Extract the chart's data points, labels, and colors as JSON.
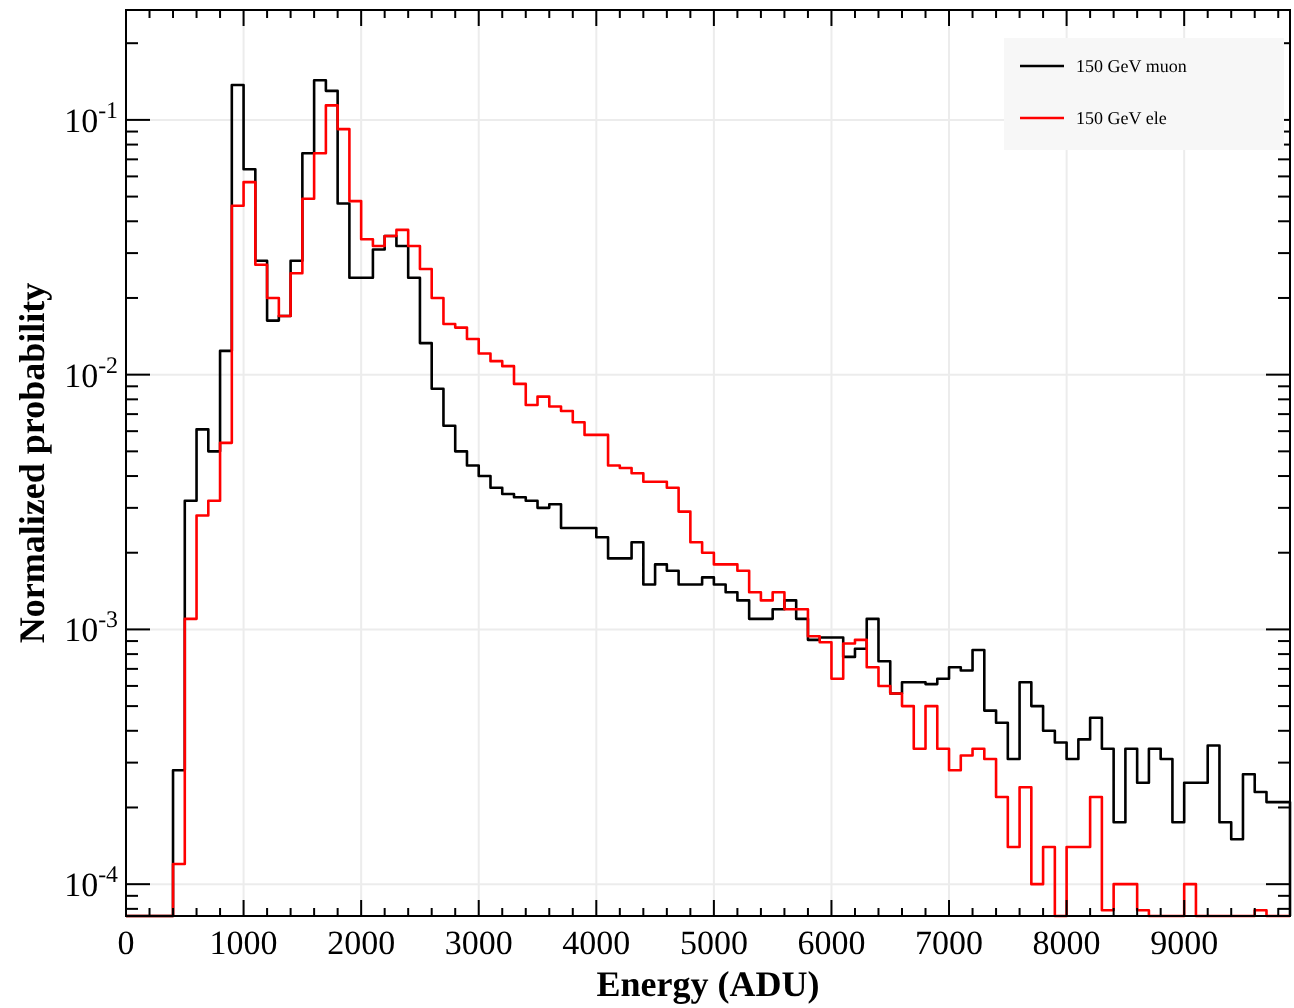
{
  "chart_data": {
    "type": "histogram",
    "xlabel": "Energy (ADU)",
    "ylabel": "Normalized probability",
    "log": "y",
    "grid": true,
    "legend": "top right",
    "bins": [
      0,
      100,
      200,
      300,
      400,
      500,
      600,
      700,
      800,
      900,
      1000,
      1100,
      1200,
      1300,
      1400,
      1500,
      1600,
      1700,
      1800,
      1900,
      2000,
      2100,
      2200,
      2300,
      2400,
      2500,
      2600,
      2700,
      2800,
      2900,
      3000,
      3100,
      3200,
      3300,
      3400,
      3500,
      3600,
      3700,
      3800,
      3900,
      4000,
      4100,
      4200,
      4300,
      4400,
      4500,
      4600,
      4700,
      4800,
      4900,
      5000,
      5100,
      5200,
      5300,
      5400,
      5500,
      5600,
      5700,
      5800,
      5900,
      6000,
      6100,
      6200,
      6300,
      6400,
      6500,
      6600,
      6700,
      6800,
      6900,
      7000,
      7100,
      7200,
      7300,
      7400,
      7500,
      7600,
      7700,
      7800,
      7900,
      8000,
      8100,
      8200,
      8300,
      8400,
      8500,
      8600,
      8700,
      8800,
      8900,
      9000,
      9100,
      9200,
      9300,
      9400,
      9500,
      9600,
      9700,
      9800,
      9900
    ],
    "xlim": [
      0,
      9900
    ],
    "ylim": [
      7.5e-05,
      0.27
    ],
    "xticks": [
      0,
      {
        "value": 200,
        "label": null
      },
      {
        "value": 400,
        "label": null
      },
      {
        "value": 600,
        "label": null
      },
      {
        "value": 800,
        "label": null
      },
      1000,
      {
        "value": 1200,
        "label": null
      },
      {
        "value": 1400,
        "label": null
      },
      {
        "value": 1600,
        "label": null
      },
      {
        "value": 1800,
        "label": null
      },
      2000,
      {
        "value": 2200,
        "label": null
      },
      {
        "value": 2400,
        "label": null
      },
      {
        "value": 2600,
        "label": null
      },
      {
        "value": 2800,
        "label": null
      },
      3000,
      {
        "value": 3200,
        "label": null
      },
      {
        "value": 3400,
        "label": null
      },
      {
        "value": 3600,
        "label": null
      },
      {
        "value": 3800,
        "label": null
      },
      4000,
      {
        "value": 4200,
        "label": null
      },
      {
        "value": 4400,
        "label": null
      },
      {
        "value": 4600,
        "label": null
      },
      {
        "value": 4800,
        "label": null
      },
      5000,
      {
        "value": 5200,
        "label": null
      },
      {
        "value": 5400,
        "label": null
      },
      {
        "value": 5600,
        "label": null
      },
      {
        "value": 5800,
        "label": null
      },
      6000,
      {
        "value": 6200,
        "label": null
      },
      {
        "value": 6400,
        "label": null
      },
      {
        "value": 6600,
        "label": null
      },
      {
        "value": 6800,
        "label": null
      },
      7000,
      {
        "value": 7200,
        "label": null
      },
      {
        "value": 7400,
        "label": null
      },
      {
        "value": 7600,
        "label": null
      },
      {
        "value": 7800,
        "label": null
      },
      8000,
      {
        "value": 8200,
        "label": null
      },
      {
        "value": 8400,
        "label": null
      },
      {
        "value": 8600,
        "label": null
      },
      {
        "value": 8800,
        "label": null
      },
      9000,
      {
        "value": 9200,
        "label": null
      },
      {
        "value": 9400,
        "label": null
      },
      {
        "value": 9600,
        "label": null
      },
      {
        "value": 9800,
        "label": null
      }
    ],
    "yticks": [
      {
        "value": 8e-05,
        "label": null
      },
      {
        "value": 9e-05,
        "label": null
      },
      {
        "value": 0.0001,
        "label": "10$^{-4}$"
      },
      {
        "value": 0.0002,
        "label": null
      },
      {
        "value": 0.0003,
        "label": null
      },
      {
        "value": 0.0004,
        "label": null
      },
      {
        "value": 0.0005,
        "label": null
      },
      {
        "value": 0.0006,
        "label": null
      },
      {
        "value": 0.0007,
        "label": null
      },
      {
        "value": 0.0008,
        "label": null
      },
      {
        "value": 0.0009,
        "label": null
      },
      {
        "value": 0.001,
        "label": "10$^{-3}$"
      },
      {
        "value": 0.002,
        "label": null
      },
      {
        "value": 0.003,
        "label": null
      },
      {
        "value": 0.004,
        "label": null
      },
      {
        "value": 0.005,
        "label": null
      },
      {
        "value": 0.006,
        "label": null
      },
      {
        "value": 0.007,
        "label": null
      },
      {
        "value": 0.008,
        "label": null
      },
      {
        "value": 0.009,
        "label": null
      },
      {
        "value": 0.01,
        "label": "10$^{-2}$"
      },
      {
        "value": 0.02,
        "label": null
      },
      {
        "value": 0.03,
        "label": null
      },
      {
        "value": 0.04,
        "label": null
      },
      {
        "value": 0.05,
        "label": null
      },
      {
        "value": 0.06,
        "label": null
      },
      {
        "value": 0.07,
        "label": null
      },
      {
        "value": 0.08,
        "label": null
      },
      {
        "value": 0.09,
        "label": null
      },
      {
        "value": 0.1,
        "label": "10$^{-1}$"
      },
      {
        "value": 0.2,
        "label": null
      }
    ],
    "series": [
      {
        "name": "150 GeV muon",
        "color": "#000000",
        "values": [
          null,
          null,
          null,
          null,
          0.00028,
          0.0032,
          0.0061,
          0.005,
          0.0124,
          0.137,
          0.064,
          0.028,
          0.0163,
          0.017,
          0.028,
          0.074,
          0.143,
          0.13,
          0.047,
          0.024,
          0.024,
          0.031,
          0.035,
          0.032,
          0.024,
          0.0133,
          0.0088,
          0.0063,
          0.005,
          0.0044,
          0.004,
          0.0036,
          0.0034,
          0.0033,
          0.0032,
          0.003,
          0.0031,
          0.0025,
          0.0025,
          0.0025,
          0.0023,
          0.0019,
          0.0019,
          0.0022,
          0.0015,
          0.0018,
          0.0017,
          0.0015,
          0.0015,
          0.0016,
          0.0015,
          0.0014,
          0.0013,
          0.0011,
          0.0011,
          0.0012,
          0.0013,
          0.0011,
          0.00091,
          0.00093,
          0.00093,
          0.00078,
          0.00084,
          0.0011,
          0.00075,
          0.00056,
          0.00062,
          0.00062,
          0.00061,
          0.00064,
          0.00071,
          0.00069,
          0.00083,
          0.00048,
          0.00043,
          0.00031,
          0.00062,
          0.0005,
          0.0004,
          0.00036,
          0.00031,
          0.00037,
          0.00045,
          0.00034,
          0.000175,
          0.00034,
          0.00025,
          0.00034,
          0.00031,
          0.000175,
          0.00025,
          0.00025,
          0.00035,
          0.000175,
          0.00015,
          0.00027,
          0.00023,
          0.00021,
          0.00021
        ]
      },
      {
        "name": "150 GeV ele",
        "color": "#ff0000",
        "values": [
          null,
          null,
          null,
          null,
          0.00012,
          0.0011,
          0.0028,
          0.0032,
          0.0054,
          0.046,
          0.057,
          0.027,
          0.02,
          0.017,
          0.025,
          0.049,
          0.074,
          0.114,
          0.092,
          0.048,
          0.034,
          0.032,
          0.035,
          0.037,
          0.032,
          0.026,
          0.02,
          0.0158,
          0.0153,
          0.0138,
          0.0121,
          0.0113,
          0.0108,
          0.0092,
          0.0076,
          0.0082,
          0.0075,
          0.0072,
          0.0065,
          0.0058,
          0.0058,
          0.0044,
          0.0043,
          0.0041,
          0.0038,
          0.0038,
          0.0036,
          0.0029,
          0.0022,
          0.002,
          0.0018,
          0.0018,
          0.0017,
          0.0014,
          0.0013,
          0.0014,
          0.0012,
          0.0012,
          0.00094,
          0.00089,
          0.00064,
          0.00088,
          0.00091,
          0.00071,
          0.0006,
          0.00056,
          0.0005,
          0.00034,
          0.0005,
          0.00034,
          0.00028,
          0.00032,
          0.00034,
          0.00031,
          0.00022,
          0.00014,
          0.00024,
          0.0001,
          0.00014,
          null,
          0.00014,
          0.00014,
          0.00022,
          7.9e-05,
          0.0001,
          0.0001,
          7.9e-05,
          null,
          null,
          null,
          0.0001,
          null,
          null,
          null,
          null,
          null,
          7.9e-05,
          null,
          null
        ]
      }
    ]
  }
}
